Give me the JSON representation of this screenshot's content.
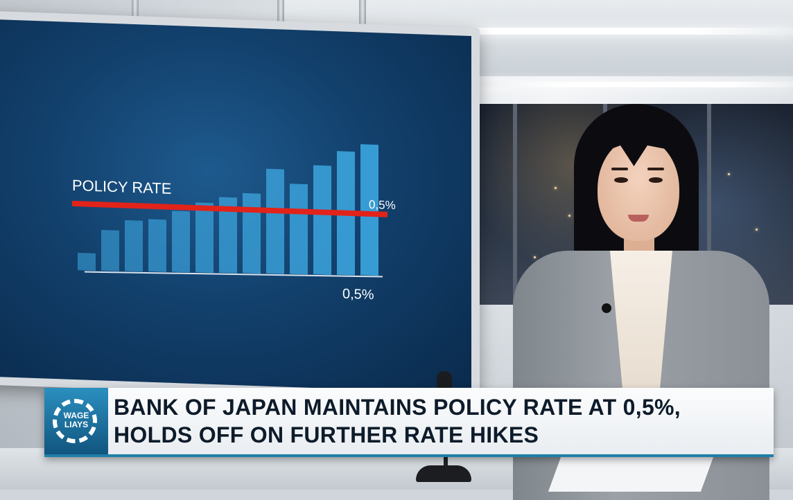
{
  "screen_chart": {
    "label": "POLICY RATE",
    "line_value_label": "0,5%",
    "axis_value_label": "0,5%",
    "line_color": "#e2231a",
    "bar_color": "#3aa0d8",
    "bars": [
      0.12,
      0.28,
      0.35,
      0.36,
      0.42,
      0.48,
      0.52,
      0.55,
      0.72,
      0.62,
      0.75,
      0.85,
      0.9
    ]
  },
  "lower_third": {
    "logo_text_1": "WAGE",
    "logo_text_2": "LIAYS",
    "headline_line_1": "BANK OF JAPAN MAINTAINS POLICY RATE AT 0,5%,",
    "headline_line_2": "HOLDS OFF ON FURTHER RATE HIKES",
    "accent_color": "#1f7ea8"
  }
}
